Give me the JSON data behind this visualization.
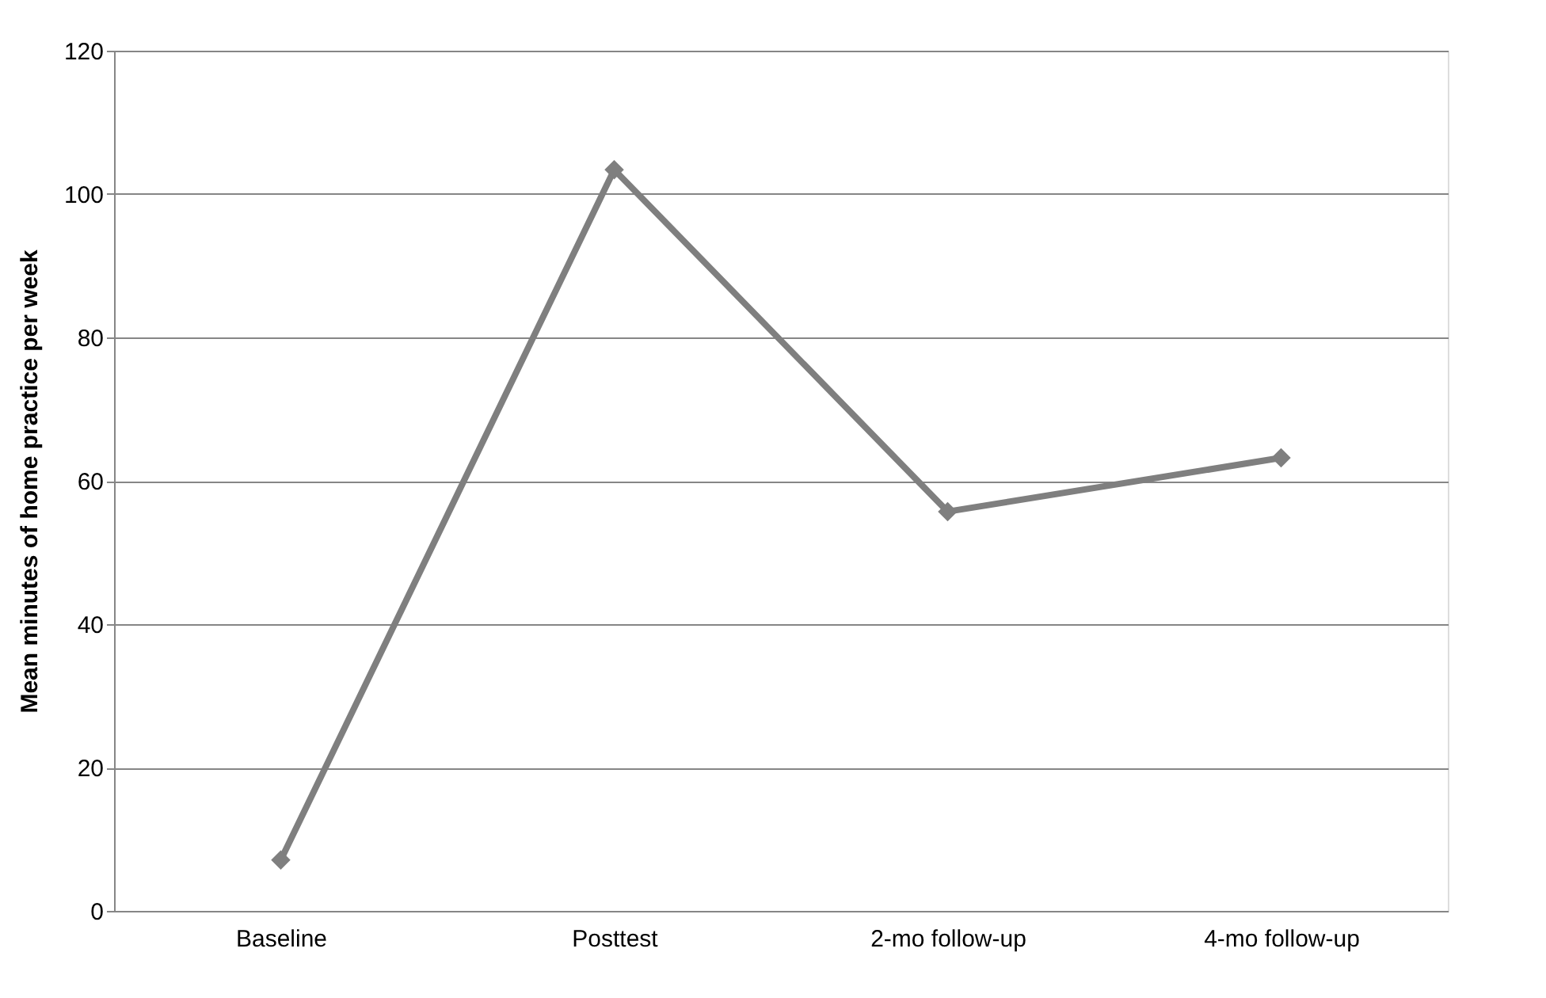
{
  "chart_data": {
    "type": "line",
    "ylabel": "Mean minutes of home practice per week",
    "categories": [
      "Baseline",
      "Posttest",
      "2-mo follow-up",
      "4-mo follow-up"
    ],
    "series": [
      {
        "color": "#7f7f7f",
        "values": [
          7.1,
          103.4,
          55.7,
          63.2
        ]
      }
    ],
    "ylim": [
      0,
      120
    ],
    "yticks": [
      0,
      20,
      40,
      60,
      80,
      100,
      120
    ],
    "grid": "y",
    "marker": "diamond",
    "line_style": "solid",
    "legend": false
  }
}
